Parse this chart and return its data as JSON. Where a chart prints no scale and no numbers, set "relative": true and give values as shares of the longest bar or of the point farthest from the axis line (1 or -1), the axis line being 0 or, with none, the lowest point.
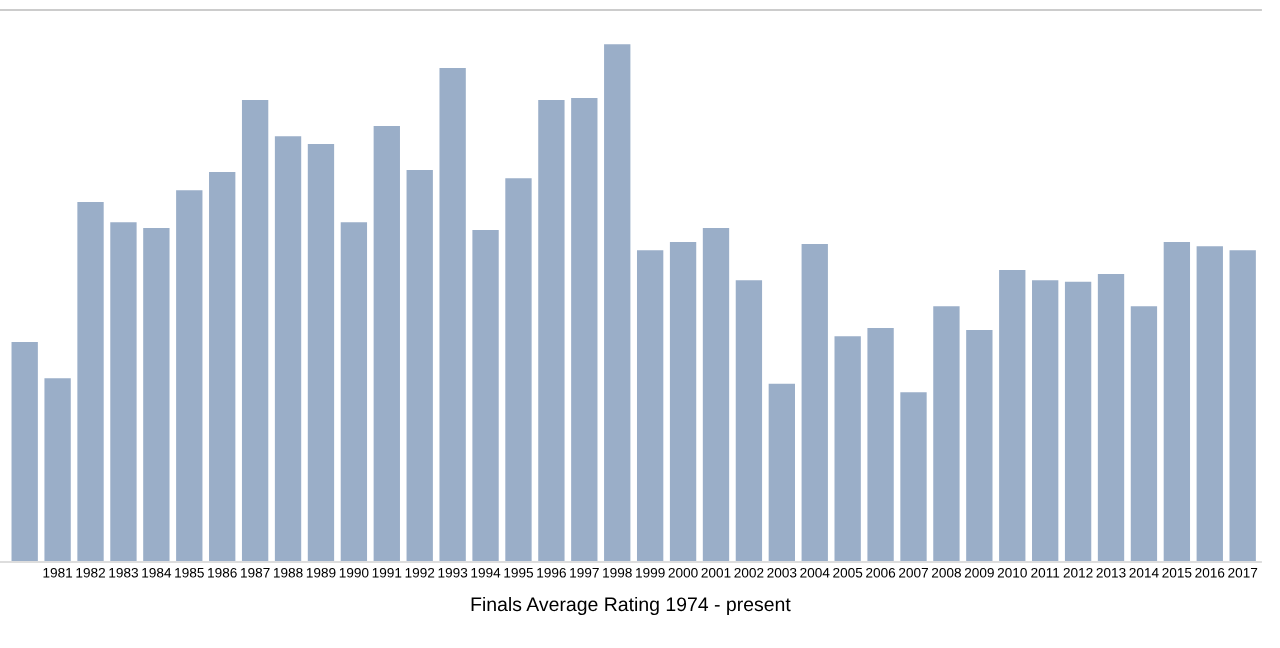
{
  "chart_data": {
    "type": "bar",
    "xlabel": "Finals Average Rating 1974 - present",
    "relative": true,
    "categories": [
      null,
      "1981",
      "1982",
      "1983",
      "1984",
      "1985",
      "1986",
      "1987",
      "1988",
      "1989",
      "1990",
      "1991",
      "1992",
      "1993",
      "1994",
      "1995",
      "1996",
      "1997",
      "1998",
      "1999",
      "2000",
      "2001",
      "2002",
      "2003",
      "2004",
      "2005",
      "2006",
      "2007",
      "2008",
      "2009",
      "2010",
      "2011",
      "2012",
      "2013",
      "2014",
      "2015",
      "2016",
      "2017"
    ],
    "values": [
      0.425,
      0.355,
      0.695,
      0.656,
      0.645,
      0.718,
      0.753,
      0.892,
      0.822,
      0.807,
      0.656,
      0.842,
      0.757,
      0.954,
      0.641,
      0.741,
      0.892,
      0.896,
      1,
      0.602,
      0.618,
      0.645,
      0.544,
      0.344,
      0.614,
      0.436,
      0.452,
      0.328,
      0.494,
      0.448,
      0.564,
      0.544,
      0.541,
      0.556,
      0.494,
      0.618,
      0.61,
      0.602
    ],
    "color": "#9aaec8"
  }
}
